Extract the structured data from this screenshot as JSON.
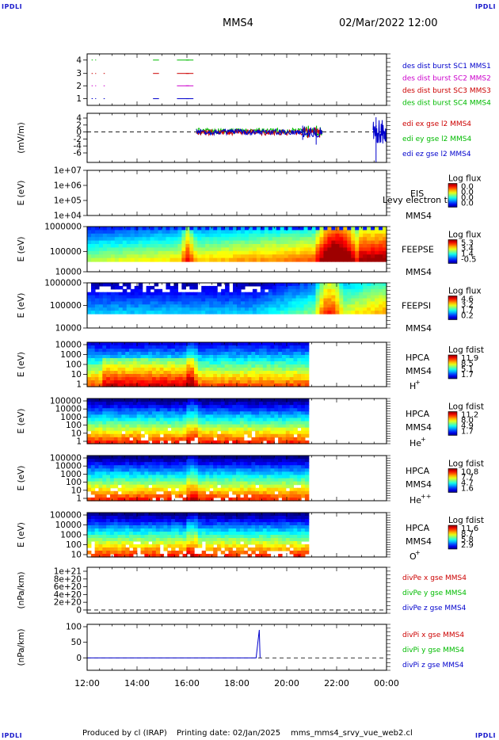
{
  "header": {
    "corner_tl": "IPDLI",
    "corner_tr": "IPDLI",
    "corner_bl": "IPDLI",
    "corner_br": "IPDLI",
    "spacecraft": "MMS4",
    "datetime": "02/Mar/2022 12:00"
  },
  "footer": {
    "produced": "Produced by cl (IRAP)",
    "printing": "Printing date: 02/Jan/2025",
    "file": "mms_mms4_srvy_vue_web2.cl"
  },
  "colors": {
    "sc1": "#0000cc",
    "sc2": "#cc00cc",
    "sc3": "#cc0000",
    "sc4": "#00bb00"
  },
  "chart_data": {
    "type": "multi-panel time series",
    "x_ticks": [
      "12:00",
      "14:00",
      "16:00",
      "18:00",
      "20:00",
      "22:00",
      "00:00"
    ],
    "panels": [
      {
        "id": "burst",
        "ylabel": "",
        "yticks": [
          "4",
          "3",
          "2",
          "1"
        ],
        "legend": [
          {
            "text": "des dist burst SC1 MMS1",
            "color": "#0000cc"
          },
          {
            "text": "des dist burst SC2 MMS2",
            "color": "#cc00cc"
          },
          {
            "text": "des dist burst SC3 MMS3",
            "color": "#cc0000"
          },
          {
            "text": "des dist burst SC4 MMS4",
            "color": "#00bb00"
          }
        ]
      },
      {
        "id": "edi",
        "ylabel": "(mV/m)",
        "yticks": [
          "4",
          "2",
          "0",
          "-2",
          "-4",
          "-6"
        ],
        "legend": [
          {
            "text": "edi ex gse l2 MMS4",
            "color": "#cc0000"
          },
          {
            "text": "edi ey gse l2 MMS4",
            "color": "#00bb00"
          },
          {
            "text": "edi ez gse l2 MMS4",
            "color": "#0000cc"
          }
        ]
      },
      {
        "id": "eis",
        "ylabel": "E (eV)",
        "yticks": [
          "1e+07",
          "1e+06",
          "1e+05",
          "1e+04"
        ],
        "labels": [
          "EIS",
          "MMS4"
        ],
        "overlay": "Levy electron to",
        "cb_title": "Log flux",
        "cb_ticks": [
          "0.0",
          "0.0",
          "0.0",
          "0.0"
        ]
      },
      {
        "id": "feepse",
        "ylabel": "E (eV)",
        "yticks": [
          "1000000",
          "100000",
          "10000"
        ],
        "labels": [
          "FEEPSE",
          "MMS4"
        ],
        "cb_title": "Log flux",
        "cb_ticks": [
          "5.3",
          "3.4",
          "1.4",
          "-0.5"
        ]
      },
      {
        "id": "feepsi",
        "ylabel": "E (eV)",
        "yticks": [
          "1000000",
          "100000",
          "10000"
        ],
        "labels": [
          "FEEPSI",
          "MMS4"
        ],
        "cb_title": "Log flux",
        "cb_ticks": [
          "4.6",
          "3.2",
          "1.7",
          "0.2"
        ]
      },
      {
        "id": "hpca_h",
        "ylabel": "E (eV)",
        "yticks": [
          "10000",
          "1000",
          "100",
          "10",
          "1"
        ],
        "labels": [
          "HPCA",
          "MMS4"
        ],
        "species": "H",
        "species_sup": "+",
        "cb_title": "Log fdist",
        "cb_ticks": [
          "11.9",
          "8.5",
          "5.1",
          "1.7"
        ]
      },
      {
        "id": "hpca_he",
        "ylabel": "E (eV)",
        "yticks": [
          "100000",
          "10000",
          "1000",
          "100",
          "10",
          "1"
        ],
        "labels": [
          "HPCA",
          "MMS4"
        ],
        "species": "He",
        "species_sup": "+",
        "cb_title": "Log fdist",
        "cb_ticks": [
          "11.2",
          "8.0",
          "4.9",
          "1.7"
        ]
      },
      {
        "id": "hpca_hepp",
        "ylabel": "E (eV)",
        "yticks": [
          "100000",
          "10000",
          "1000",
          "100",
          "10",
          "1"
        ],
        "labels": [
          "HPCA",
          "MMS4"
        ],
        "species": "He",
        "species_sup": "++",
        "cb_title": "Log fdist",
        "cb_ticks": [
          "10.8",
          "7.7",
          "4.7",
          "1.6"
        ]
      },
      {
        "id": "hpca_o",
        "ylabel": "E (eV)",
        "yticks": [
          "100000",
          "10000",
          "1000",
          "100",
          "10"
        ],
        "labels": [
          "HPCA",
          "MMS4"
        ],
        "species": "O",
        "species_sup": "+",
        "cb_title": "Log fdist",
        "cb_ticks": [
          "11.6",
          "8.7",
          "5.8",
          "2.9"
        ]
      },
      {
        "id": "divpe",
        "ylabel": "(nPa/km)",
        "yticks": [
          "1e+21",
          "8e+20",
          "6e+20",
          "4e+20",
          "2e+20",
          "0"
        ],
        "legend": [
          {
            "text": "divPe x gse MMS4",
            "color": "#cc0000"
          },
          {
            "text": "divPe y gse MMS4",
            "color": "#00bb00"
          },
          {
            "text": "divPe z gse MMS4",
            "color": "#0000cc"
          }
        ]
      },
      {
        "id": "divpi",
        "ylabel": "(nPa/km)",
        "yticks": [
          "100",
          "50",
          "0"
        ],
        "legend": [
          {
            "text": "divPi x gse MMS4",
            "color": "#cc0000"
          },
          {
            "text": "divPi y gse MMS4",
            "color": "#00bb00"
          },
          {
            "text": "divPi z gse MMS4",
            "color": "#0000cc"
          }
        ]
      }
    ]
  }
}
